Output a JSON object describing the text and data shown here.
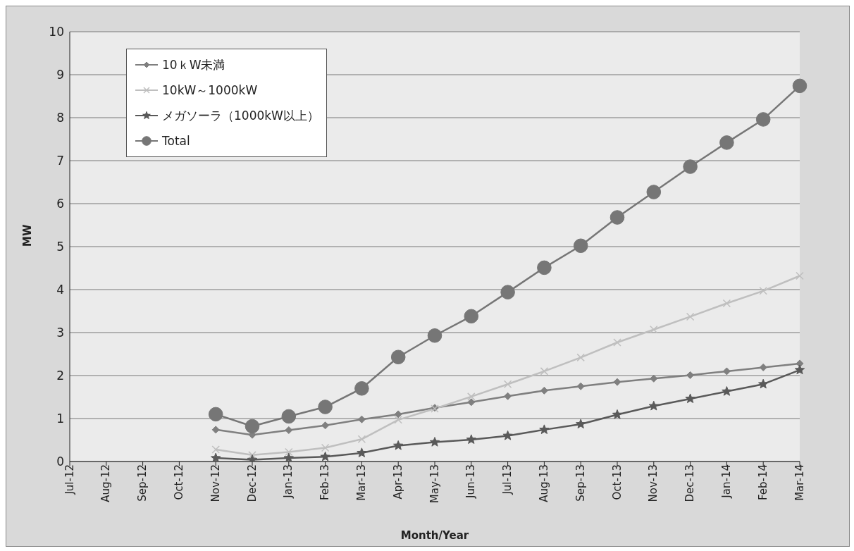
{
  "chart_data": {
    "type": "line",
    "xlabel": "Month/Year",
    "ylabel": "MW",
    "categories": [
      "Jul-12",
      "Aug-12",
      "Sep-12",
      "Oct-12",
      "Nov-12",
      "Dec-12",
      "Jan-13",
      "Feb-13",
      "Mar-13",
      "Apr-13",
      "May-13",
      "Jun-13",
      "Jul-13",
      "Aug-13",
      "Sep-13",
      "Oct-13",
      "Nov-13",
      "Dec-13",
      "Jan-14",
      "Feb-14",
      "Mar-14"
    ],
    "series": [
      {
        "name": "10ｋW未満",
        "color": "#7f7f7f",
        "marker": "diamond",
        "values": [
          null,
          null,
          null,
          null,
          0.74,
          0.62,
          0.73,
          0.84,
          0.98,
          1.1,
          1.25,
          1.38,
          1.52,
          1.65,
          1.75,
          1.85,
          1.93,
          2.01,
          2.1,
          2.19,
          2.28
        ]
      },
      {
        "name": "10kW～1000kW",
        "color": "#bfbfbf",
        "marker": "cross",
        "values": [
          null,
          null,
          null,
          null,
          0.28,
          0.15,
          0.22,
          0.32,
          0.52,
          0.97,
          1.23,
          1.51,
          1.8,
          2.1,
          2.42,
          2.77,
          3.07,
          3.37,
          3.68,
          3.97,
          4.32
        ]
      },
      {
        "name": "メガソーラ（1000kW以上）",
        "color": "#595959",
        "marker": "star",
        "values": [
          null,
          null,
          null,
          null,
          0.08,
          0.04,
          0.08,
          0.11,
          0.2,
          0.37,
          0.45,
          0.51,
          0.6,
          0.74,
          0.87,
          1.09,
          1.29,
          1.46,
          1.63,
          1.8,
          2.13
        ]
      },
      {
        "name": "Total",
        "color": "#767676",
        "marker": "circle",
        "values": [
          null,
          null,
          null,
          null,
          1.1,
          0.82,
          1.05,
          1.27,
          1.7,
          2.43,
          2.93,
          3.38,
          3.94,
          4.51,
          5.02,
          5.68,
          6.27,
          6.86,
          7.42,
          7.96,
          8.74
        ]
      }
    ],
    "ylim": [
      0,
      10
    ],
    "yticks": [
      0,
      1,
      2,
      3,
      4,
      5,
      6,
      7,
      8,
      9,
      10
    ],
    "grid": "y",
    "legend": "top left"
  }
}
